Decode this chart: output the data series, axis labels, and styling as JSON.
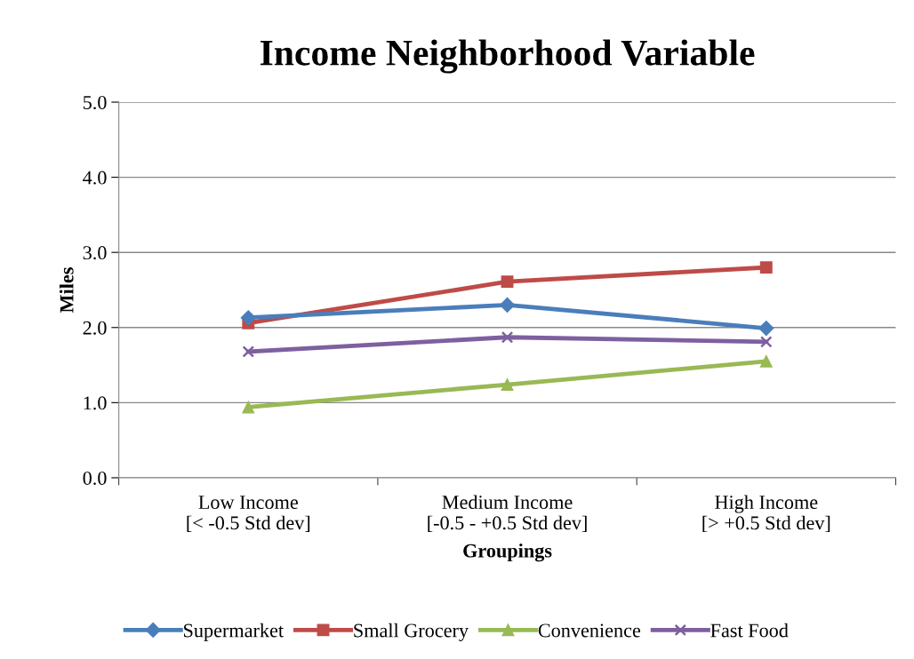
{
  "chart_data": {
    "type": "line",
    "title": "Income Neighborhood Variable",
    "xlabel": "Groupings",
    "ylabel": "Miles",
    "categories": [
      "Low Income\n[< -0.5 Std dev]",
      "Medium Income\n[-0.5 - +0.5 Std dev]",
      "High Income\n[> +0.5 Std dev]"
    ],
    "series": [
      {
        "name": "Supermarket",
        "color": "#4a7ebb",
        "marker": "diamond",
        "values": [
          2.13,
          2.3,
          1.99
        ]
      },
      {
        "name": "Small Grocery",
        "color": "#be4b48",
        "marker": "square",
        "values": [
          2.06,
          2.61,
          2.8
        ]
      },
      {
        "name": "Convenience",
        "color": "#98b954",
        "marker": "triangle",
        "values": [
          0.94,
          1.24,
          1.55
        ]
      },
      {
        "name": "Fast Food",
        "color": "#7d60a0",
        "marker": "cross",
        "values": [
          1.68,
          1.87,
          1.81
        ]
      }
    ],
    "ylim": [
      0,
      5
    ],
    "yticks": [
      {
        "value": 0,
        "label": "0.0"
      },
      {
        "value": 1,
        "label": "1.0"
      },
      {
        "value": 2,
        "label": "2.0"
      },
      {
        "value": 3,
        "label": "3.0"
      },
      {
        "value": 4,
        "label": "4.0"
      },
      {
        "value": 5,
        "label": "5.0"
      }
    ],
    "grid": "y",
    "legend": "bottom",
    "line_style": "solid"
  }
}
